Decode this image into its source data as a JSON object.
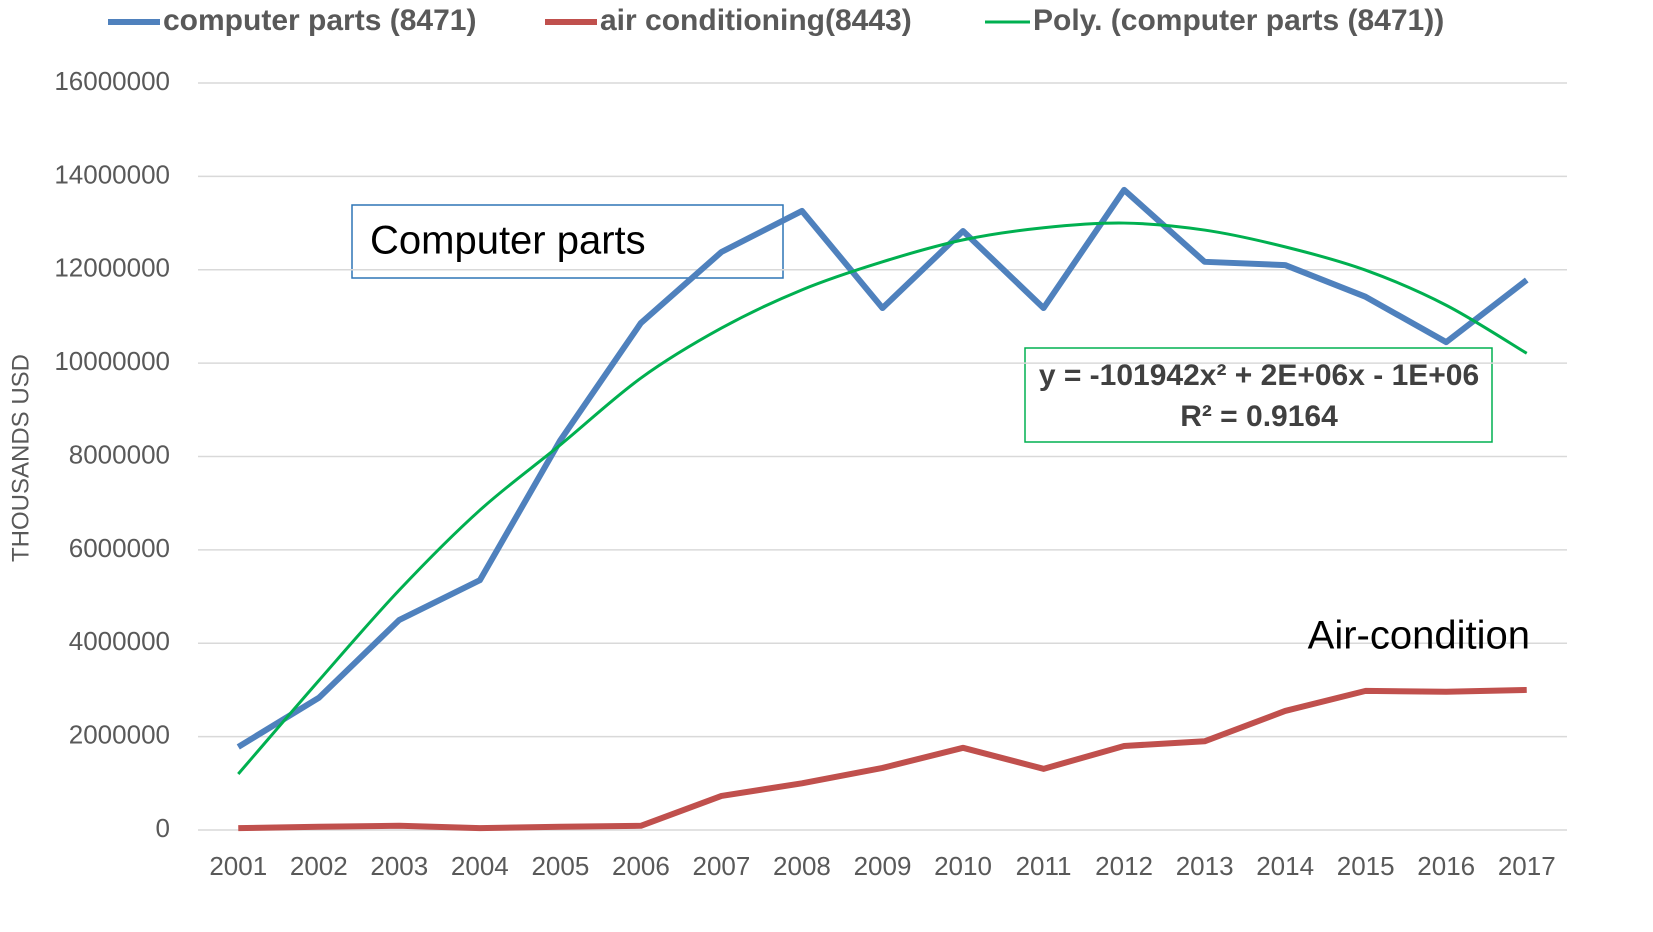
{
  "chart_data": {
    "type": "line",
    "y_label": "THOUSANDS USD",
    "categories": [
      "2001",
      "2002",
      "2003",
      "2004",
      "2005",
      "2006",
      "2007",
      "2008",
      "2009",
      "2010",
      "2011",
      "2012",
      "2013",
      "2014",
      "2015",
      "2016",
      "2017"
    ],
    "series": [
      {
        "name": "computer parts (8471)",
        "color": "#4f81bd",
        "width": 6,
        "values": [
          1780000,
          2830000,
          4500000,
          5350000,
          8350000,
          10860000,
          12380000,
          13260000,
          11180000,
          12830000,
          11180000,
          13710000,
          12170000,
          12100000,
          11420000,
          10450000,
          11780000
        ]
      },
      {
        "name": "air conditioning(8443)",
        "color": "#c0504d",
        "width": 6,
        "values": [
          40000,
          70000,
          90000,
          40000,
          70000,
          90000,
          730000,
          1000000,
          1330000,
          1760000,
          1310000,
          1800000,
          1900000,
          2550000,
          2980000,
          2960000,
          3000000
        ]
      },
      {
        "name": "Poly. (computer parts (8471))",
        "color": "#00b050",
        "width": 3,
        "smooth": true,
        "values": [
          1200000,
          3200000,
          5140000,
          6850000,
          8250000,
          9680000,
          10750000,
          11570000,
          12170000,
          12640000,
          12900000,
          13000000,
          12850000,
          12490000,
          11990000,
          11240000,
          10210000
        ]
      }
    ],
    "annotations": [
      "Computer parts",
      "Air-condition",
      "y = -101942x² + 2E+06x - 1E+06",
      "R² = 0.9164"
    ],
    "ylim": [
      0,
      16000000
    ],
    "yticks": [
      0,
      2000000,
      4000000,
      6000000,
      8000000,
      10000000,
      12000000,
      14000000,
      16000000
    ],
    "grid": true,
    "legend": "top"
  }
}
